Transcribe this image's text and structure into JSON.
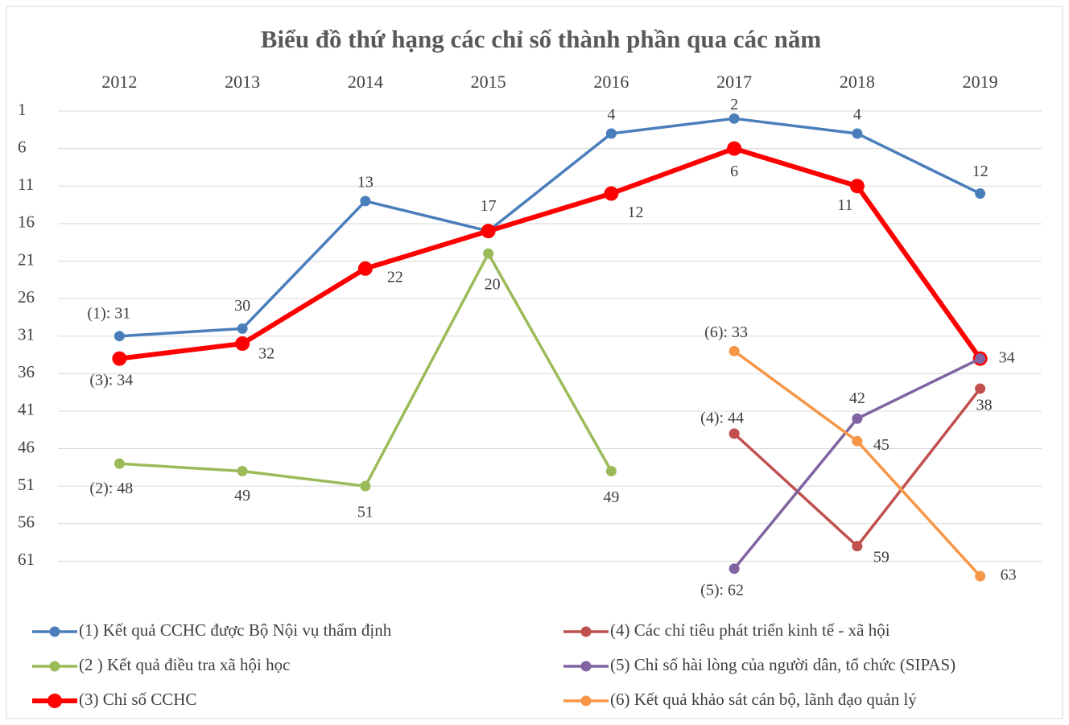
{
  "chart_data": {
    "type": "line",
    "title": "Biểu đồ thứ hạng các chỉ số thành phần qua các năm",
    "categories": [
      "2012",
      "2013",
      "2014",
      "2015",
      "2016",
      "2017",
      "2018",
      "2019"
    ],
    "ylim": [
      1,
      66
    ],
    "inverted": true,
    "yticks": [
      1,
      6,
      11,
      16,
      21,
      26,
      31,
      36,
      41,
      46,
      51,
      56,
      61
    ],
    "grid": true,
    "series": [
      {
        "name": "(1) Kết quả CCHC được Bộ Nội vụ thẩm định",
        "color": "#4a7ebb",
        "values": [
          31,
          30,
          13,
          17,
          4,
          2,
          4,
          12
        ],
        "value_labels": [
          "(1): 31",
          "30",
          "13",
          "17",
          "4",
          "2",
          "4",
          "12"
        ]
      },
      {
        "name": "(2 ) Kết quả điều tra xã hội học",
        "color": "#9bbb59",
        "values": [
          48,
          49,
          51,
          20,
          49,
          null,
          null,
          null
        ],
        "value_labels": [
          "(2): 48",
          "49",
          "51",
          "20",
          "49",
          null,
          null,
          null
        ]
      },
      {
        "name": "(3) Chỉ số CCHC",
        "color": "#ff0000",
        "values": [
          34,
          32,
          22,
          17,
          12,
          6,
          11,
          34
        ],
        "value_labels": [
          "(3): 34",
          "32",
          "22",
          null,
          "12",
          "6",
          "11",
          "34"
        ]
      },
      {
        "name": "(4) Các chỉ tiêu phát triển kinh tế - xã hội",
        "color": "#c0504d",
        "values": [
          null,
          null,
          null,
          null,
          null,
          44,
          59,
          38
        ],
        "value_labels": [
          null,
          null,
          null,
          null,
          null,
          "(4): 44",
          "59",
          "38"
        ]
      },
      {
        "name": "(5) Chỉ số hài lòng của người dân, tổ chức (SIPAS)",
        "color": "#8064a2",
        "values": [
          null,
          null,
          null,
          null,
          null,
          62,
          42,
          34
        ],
        "value_labels": [
          null,
          null,
          null,
          null,
          null,
          "(5): 62",
          "42",
          null
        ]
      },
      {
        "name": "(6) Kết quả khảo sát cán bộ, lãnh đạo quản lý",
        "color": "#f79646",
        "values": [
          null,
          null,
          null,
          null,
          null,
          33,
          45,
          63
        ],
        "value_labels": [
          null,
          null,
          null,
          null,
          null,
          "(6): 33",
          "45",
          "63"
        ]
      }
    ]
  }
}
